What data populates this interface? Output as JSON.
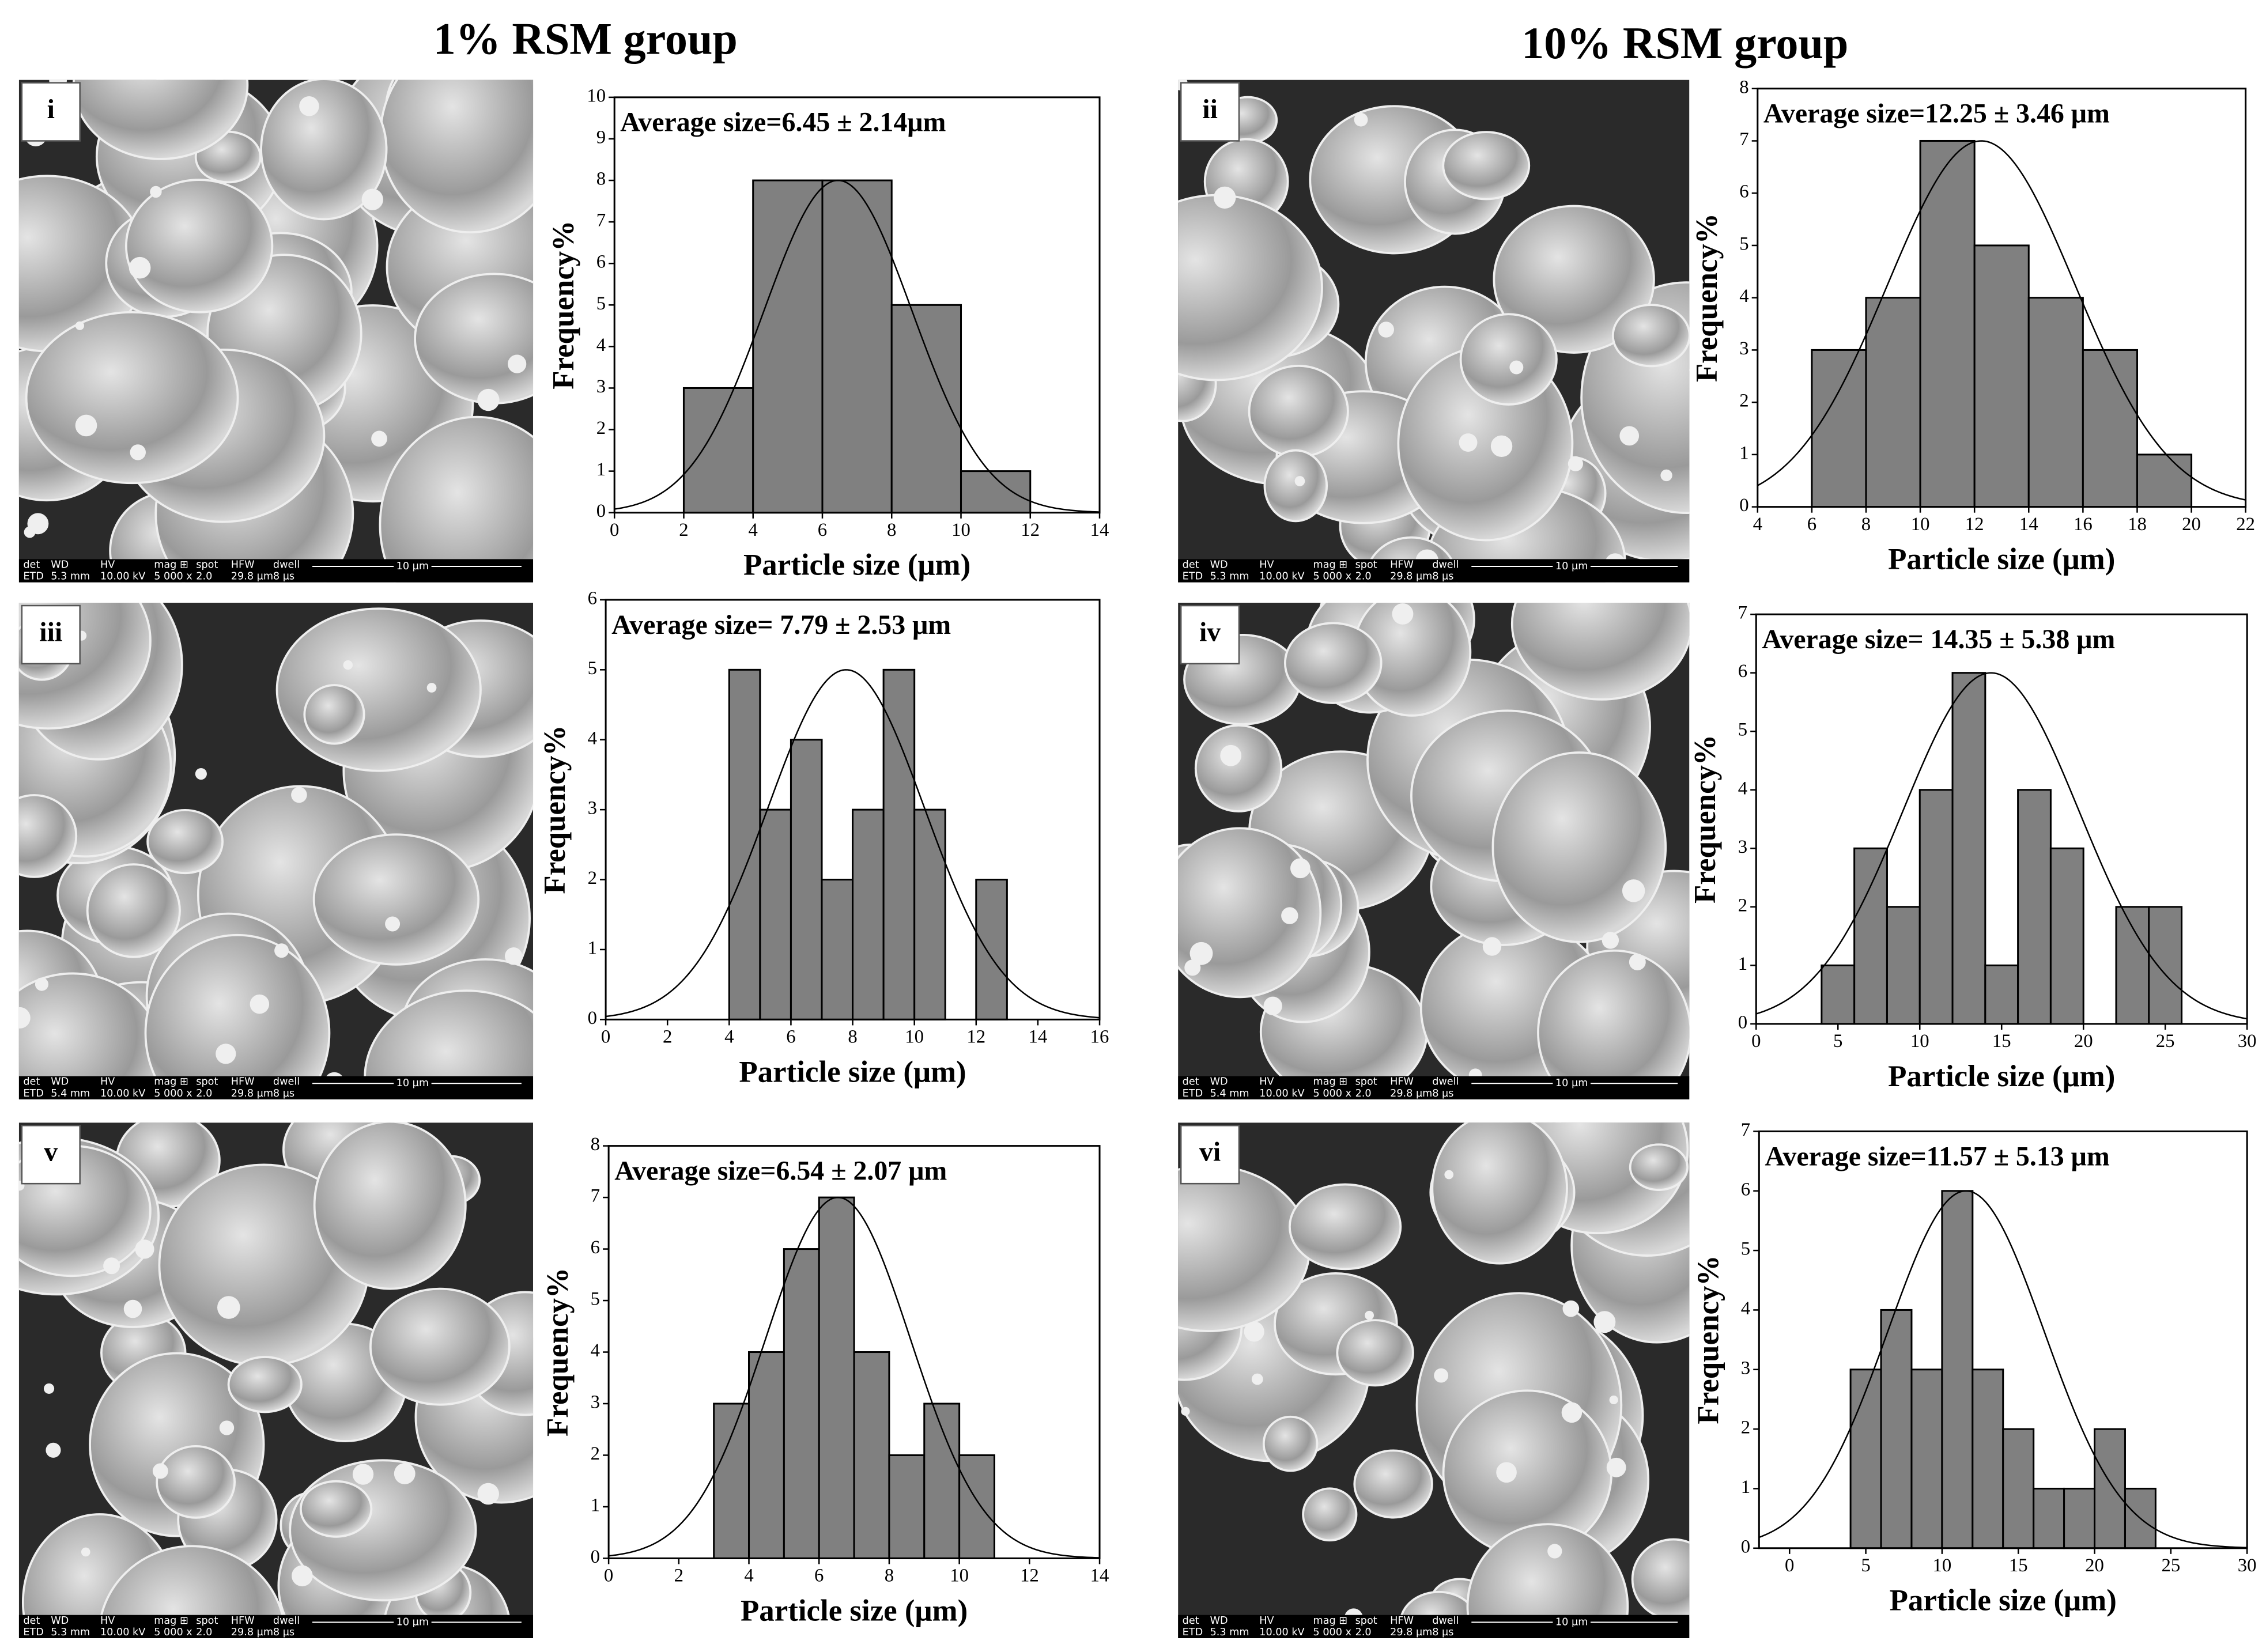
{
  "group_titles": [
    "1% RSM group",
    "10% RSM group"
  ],
  "images": [
    {
      "label": "i",
      "info_header": [
        "det",
        "WD",
        "HV",
        "mag ⊞",
        "spot",
        "HFW",
        "dwell"
      ],
      "info_values": [
        "ETD",
        "5.3 mm",
        "10.00 kV",
        "5 000 x",
        "2.0",
        "29.8 µm",
        "8 µs"
      ],
      "scale_bar": "10 µm"
    },
    {
      "label": "ii",
      "info_header": [
        "det",
        "WD",
        "HV",
        "mag ⊞",
        "spot",
        "HFW",
        "dwell"
      ],
      "info_values": [
        "ETD",
        "5.3 mm",
        "10.00 kV",
        "5 000 x",
        "2.0",
        "29.8 µm",
        "8 µs"
      ],
      "scale_bar": "10 µm"
    },
    {
      "label": "iii",
      "info_header": [
        "det",
        "WD",
        "HV",
        "mag ⊞",
        "spot",
        "HFW",
        "dwell"
      ],
      "info_values": [
        "ETD",
        "5.4 mm",
        "10.00 kV",
        "5 000 x",
        "2.0",
        "29.8 µm",
        "8 µs"
      ],
      "scale_bar": "10 µm"
    },
    {
      "label": "iv",
      "info_header": [
        "det",
        "WD",
        "HV",
        "mag ⊞",
        "spot",
        "HFW",
        "dwell"
      ],
      "info_values": [
        "ETD",
        "5.4 mm",
        "10.00 kV",
        "5 000 x",
        "2.0",
        "29.8 µm",
        "8 µs"
      ],
      "scale_bar": "10 µm"
    },
    {
      "label": "v",
      "info_header": [
        "det",
        "WD",
        "HV",
        "mag ⊞",
        "spot",
        "HFW",
        "dwell"
      ],
      "info_values": [
        "ETD",
        "5.3 mm",
        "10.00 kV",
        "5 000 x",
        "2.0",
        "29.8 µm",
        "8 µs"
      ],
      "scale_bar": "10 µm"
    },
    {
      "label": "vi",
      "info_header": [
        "det",
        "WD",
        "HV",
        "mag ⊞",
        "spot",
        "HFW",
        "dwell"
      ],
      "info_values": [
        "ETD",
        "5.3 mm",
        "10.00 kV",
        "5 000 x",
        "2.0",
        "29.8 µm",
        "8 µs"
      ],
      "scale_bar": "10 µm"
    }
  ],
  "chart_data": [
    {
      "type": "histogram",
      "annotation": "Average size=6.45 ± 2.14μm",
      "xlabel": "Particle size (μm)",
      "ylabel": "Frequency%",
      "color": "#808080",
      "bins": [
        2,
        4,
        6,
        8,
        10,
        12
      ],
      "counts": [
        3,
        8,
        8,
        5,
        1
      ],
      "curve": {
        "mean": 6.45,
        "sd": 2.14,
        "peak": 8
      },
      "xlim": [
        0,
        14
      ],
      "xticks": [
        0,
        2,
        4,
        6,
        8,
        10,
        12,
        14
      ],
      "ylim": [
        0,
        10
      ],
      "yticks": [
        0,
        1,
        2,
        3,
        4,
        5,
        6,
        7,
        8,
        9,
        10
      ]
    },
    {
      "type": "histogram",
      "annotation": "Average size=12.25 ± 3.46 μm",
      "xlabel": "Particle size (μm)",
      "ylabel": "Frequency%",
      "color": "#808080",
      "bins": [
        6,
        8,
        10,
        12,
        14,
        16,
        18,
        20
      ],
      "counts": [
        3,
        4,
        7,
        5,
        4,
        3,
        1
      ],
      "curve": {
        "mean": 12.25,
        "sd": 3.46,
        "peak": 7
      },
      "xlim": [
        4,
        22
      ],
      "xticks": [
        4,
        6,
        8,
        10,
        12,
        14,
        16,
        18,
        20,
        22
      ],
      "ylim": [
        0,
        8
      ],
      "yticks": [
        0,
        1,
        2,
        3,
        4,
        5,
        6,
        7,
        8
      ]
    },
    {
      "type": "histogram",
      "annotation": "Average size= 7.79 ± 2.53 μm",
      "xlabel": "Particle size (μm)",
      "ylabel": "Frequency%",
      "color": "#808080",
      "bins": [
        4,
        5,
        6,
        7,
        8,
        9,
        10,
        11,
        12,
        13
      ],
      "counts": [
        5,
        3,
        4,
        2,
        3,
        5,
        3,
        0,
        2
      ],
      "curve": {
        "mean": 7.79,
        "sd": 2.53,
        "peak": 5
      },
      "xlim": [
        0,
        16
      ],
      "xticks": [
        0,
        2,
        4,
        6,
        8,
        10,
        12,
        14,
        16
      ],
      "ylim": [
        0,
        6
      ],
      "yticks": [
        0,
        1,
        2,
        3,
        4,
        5,
        6
      ]
    },
    {
      "type": "histogram",
      "annotation": "Average size= 14.35 ± 5.38 μm",
      "xlabel": "Particle size (μm)",
      "ylabel": "Frequency%",
      "color": "#808080",
      "bins": [
        4,
        6,
        8,
        10,
        12,
        14,
        16,
        18,
        20,
        22,
        24,
        26
      ],
      "counts": [
        1,
        3,
        2,
        4,
        6,
        1,
        4,
        3,
        0,
        2,
        2
      ],
      "curve": {
        "mean": 14.35,
        "sd": 5.38,
        "peak": 6
      },
      "xlim": [
        0,
        30
      ],
      "xticks": [
        0,
        5,
        10,
        15,
        20,
        25,
        30
      ],
      "ylim": [
        0,
        7
      ],
      "yticks": [
        0,
        1,
        2,
        3,
        4,
        5,
        6,
        7
      ]
    },
    {
      "type": "histogram",
      "annotation": "Average size=6.54 ± 2.07 μm",
      "xlabel": "Particle size (μm)",
      "ylabel": "Frequency%",
      "color": "#808080",
      "bins": [
        3,
        4,
        5,
        6,
        7,
        8,
        9,
        10,
        11
      ],
      "counts": [
        3,
        4,
        6,
        7,
        4,
        2,
        3,
        2
      ],
      "curve": {
        "mean": 6.54,
        "sd": 2.07,
        "peak": 7
      },
      "xlim": [
        0,
        14
      ],
      "xticks": [
        0,
        2,
        4,
        6,
        8,
        10,
        12,
        14
      ],
      "ylim": [
        0,
        8
      ],
      "yticks": [
        0,
        1,
        2,
        3,
        4,
        5,
        6,
        7,
        8
      ]
    },
    {
      "type": "histogram",
      "annotation": "Average size=11.57 ± 5.13 μm",
      "xlabel": "Particle size (μm)",
      "ylabel": "Frequency%",
      "color": "#808080",
      "bins": [
        4,
        6,
        8,
        10,
        12,
        14,
        16,
        18,
        20,
        22,
        24
      ],
      "counts": [
        3,
        4,
        3,
        6,
        3,
        2,
        1,
        1,
        2,
        1
      ],
      "curve": {
        "mean": 11.57,
        "sd": 5.13,
        "peak": 6
      },
      "xlim": [
        -2,
        30
      ],
      "xticks": [
        0,
        5,
        10,
        15,
        20,
        25,
        30
      ],
      "ylim": [
        0,
        7
      ],
      "yticks": [
        0,
        1,
        2,
        3,
        4,
        5,
        6,
        7
      ]
    }
  ]
}
